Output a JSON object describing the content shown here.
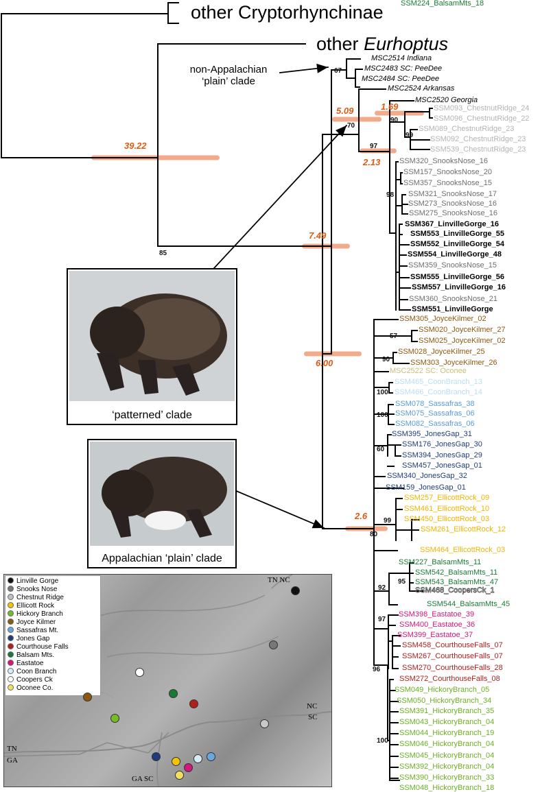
{
  "labels": {
    "other_cryptorhynchinae": "other Cryptorhynchinae",
    "other_eurhoptus_prefix": "other",
    "other_eurhoptus_genus": "Eurhoptus",
    "non_appalachian_callout": "non-Appalachian\n‘plain’ clade",
    "patterned_caption": "‘patterned’ clade",
    "appalachian_caption": "Appalachian ‘plain’ clade"
  },
  "node_ages": [
    "39.22",
    "7.49",
    "6.00",
    "5.09",
    "1.69",
    "2.13",
    "2.6"
  ],
  "supports": [
    "85",
    "67",
    "70",
    "90",
    "99",
    "97",
    "98",
    "57",
    "90",
    "100",
    "100",
    "60",
    "80",
    "99",
    "95",
    "92",
    "97",
    "96",
    "100"
  ],
  "tips": [
    {
      "label": "MSC2514 Indiana",
      "color": "#000000",
      "style": "i"
    },
    {
      "label": "MSC2483 SC: PeeDee",
      "color": "#000000",
      "style": "i"
    },
    {
      "label": "MSC2484 SC: PeeDee",
      "color": "#000000",
      "style": "i"
    },
    {
      "label": "MSC2524 Arkansas",
      "color": "#000000",
      "style": "i"
    },
    {
      "label": "MSC2520 Georgia",
      "color": "#000000",
      "style": "i"
    },
    {
      "label": "SSM093_ChestnutRidge_24",
      "color": "#b4b4b4",
      "style": ""
    },
    {
      "label": "SSM096_ChestnutRidge_22",
      "color": "#b4b4b4",
      "style": ""
    },
    {
      "label": "SSM089_ChestnutRidge_23",
      "color": "#b4b4b4",
      "style": ""
    },
    {
      "label": "SSM092_ChestnutRidge_23",
      "color": "#b4b4b4",
      "style": ""
    },
    {
      "label": "SSM539_ChestnutRidge_23",
      "color": "#b4b4b4",
      "style": ""
    },
    {
      "label": "SSM320_SnooksNose_16",
      "color": "#6e6e6e",
      "style": ""
    },
    {
      "label": "SSM157_SnooksNose_20",
      "color": "#6e6e6e",
      "style": ""
    },
    {
      "label": "SSM357_SnooksNose_15",
      "color": "#6e6e6e",
      "style": ""
    },
    {
      "label": "SSM321_SnooksNose_17",
      "color": "#6e6e6e",
      "style": ""
    },
    {
      "label": "SSM273_SnooksNose_16",
      "color": "#6e6e6e",
      "style": ""
    },
    {
      "label": "SSM275_SnooksNose_16",
      "color": "#6e6e6e",
      "style": ""
    },
    {
      "label": "SSM367_LinvilleGorge_16",
      "color": "#000000",
      "style": "b"
    },
    {
      "label": "SSM553_LinvilleGorge_55",
      "color": "#000000",
      "style": "b"
    },
    {
      "label": "SSM552_LinvilleGorge_54",
      "color": "#000000",
      "style": "b"
    },
    {
      "label": "SSM554_LinvilleGorge_48",
      "color": "#000000",
      "style": "b"
    },
    {
      "label": "SSM359_SnooksNose_15",
      "color": "#6e6e6e",
      "style": ""
    },
    {
      "label": "SSM555_LinvilleGorge_56",
      "color": "#000000",
      "style": "b"
    },
    {
      "label": "SSM557_LinvilleGorge_16",
      "color": "#000000",
      "style": "b"
    },
    {
      "label": "SSM360_SnooksNose_21",
      "color": "#6e6e6e",
      "style": ""
    },
    {
      "label": "SSM551_LinvilleGorge",
      "color": "#000000",
      "style": "b"
    },
    {
      "label": "SSM305_JoyceKilmer_02",
      "color": "#8b5a12",
      "style": ""
    },
    {
      "label": "SSM020_JoyceKilmer_27",
      "color": "#8b5a12",
      "style": ""
    },
    {
      "label": "SSM025_JoyceKilmer_02",
      "color": "#8b5a12",
      "style": ""
    },
    {
      "label": "SSM028_JoyceKilmer_25",
      "color": "#8b5a12",
      "style": ""
    },
    {
      "label": "SSM303_JoyceKilmer_26",
      "color": "#8b5a12",
      "style": ""
    },
    {
      "label": "MSC2522 SC: Oconee",
      "color": "#c9c07a",
      "style": ""
    },
    {
      "label": "SSM465_CoonBranch_13",
      "color": "#b9def0",
      "style": ""
    },
    {
      "label": "SSM466_CoonBranch_14",
      "color": "#b9def0",
      "style": ""
    },
    {
      "label": "SSM078_Sassafras_38",
      "color": "#5b9bd5",
      "style": ""
    },
    {
      "label": "SSM075_Sassafras_06",
      "color": "#5b9bd5",
      "style": ""
    },
    {
      "label": "SSM082_Sassafras_06",
      "color": "#5b9bd5",
      "style": ""
    },
    {
      "label": "SSM395_JonesGap_31",
      "color": "#1f3b7a",
      "style": ""
    },
    {
      "label": "SSM176_JonesGap_30",
      "color": "#1f3b7a",
      "style": ""
    },
    {
      "label": "SSM394_JonesGap_29",
      "color": "#1f3b7a",
      "style": ""
    },
    {
      "label": "SSM457_JonesGap_01",
      "color": "#1f3b7a",
      "style": ""
    },
    {
      "label": "SSM340_JonesGap_32",
      "color": "#1f3b7a",
      "style": ""
    },
    {
      "label": "SSM159_JonesGap_01",
      "color": "#1f3b7a",
      "style": ""
    },
    {
      "label": "SSM257_EllicottRock_09",
      "color": "#f0b400",
      "style": ""
    },
    {
      "label": "SSM461_EllicottRock_10",
      "color": "#f0b400",
      "style": ""
    },
    {
      "label": "SSM450_EllicottRock_03",
      "color": "#f0b400",
      "style": ""
    },
    {
      "label": "SSM261_EllicottRock_12",
      "color": "#f0b400",
      "style": ""
    },
    {
      "label": "SSM464_EllicottRock_03",
      "color": "#f0b400",
      "style": ""
    },
    {
      "label": "SSM227_BalsamMts_11",
      "color": "#1a7a35",
      "style": ""
    },
    {
      "label": "SSM542_BalsamMts_11",
      "color": "#1a7a35",
      "style": ""
    },
    {
      "label": "SSM543_BalsamMts_47",
      "color": "#1a7a35",
      "style": ""
    },
    {
      "label": "SSM468_CoopersCk_1",
      "color": "#000000",
      "style": "o"
    },
    {
      "label": "SSM544_BalsamMts_45",
      "color": "#1a7a35",
      "style": ""
    },
    {
      "label": "SSM398_Eastatoe_39",
      "color": "#d4157a",
      "style": ""
    },
    {
      "label": "SSM400_Eastatoe_36",
      "color": "#d4157a",
      "style": ""
    },
    {
      "label": "SSM399_Eastatoe_37",
      "color": "#d4157a",
      "style": ""
    },
    {
      "label": "SSM458_CourthouseFalls_07",
      "color": "#b0201c",
      "style": ""
    },
    {
      "label": "SSM267_CourthouseFalls_07",
      "color": "#b0201c",
      "style": ""
    },
    {
      "label": "SSM270_CourthouseFalls_28",
      "color": "#b0201c",
      "style": ""
    },
    {
      "label": "SSM272_CourthouseFalls_08",
      "color": "#b0201c",
      "style": ""
    },
    {
      "label": "SSM049_HickoryBranch_05",
      "color": "#6ab023",
      "style": ""
    },
    {
      "label": "SSM050_HickoryBranch_34",
      "color": "#6ab023",
      "style": ""
    },
    {
      "label": "SSM391_HickoryBranch_35",
      "color": "#6ab023",
      "style": ""
    },
    {
      "label": "SSM043_HickoryBranch_04",
      "color": "#6ab023",
      "style": ""
    },
    {
      "label": "SSM044_HickoryBranch_19",
      "color": "#6ab023",
      "style": ""
    },
    {
      "label": "SSM046_HickoryBranch_04",
      "color": "#6ab023",
      "style": ""
    },
    {
      "label": "SSM045_HickoryBranch_04",
      "color": "#6ab023",
      "style": ""
    },
    {
      "label": "SSM392_HickoryBranch_04",
      "color": "#6ab023",
      "style": ""
    },
    {
      "label": "SSM390_HickoryBranch_33",
      "color": "#6ab023",
      "style": ""
    },
    {
      "label": "SSM048_HickoryBranch_18",
      "color": "#6ab023",
      "style": ""
    },
    {
      "label": "SSM224_BalsamMts_18",
      "color": "#1a7a35",
      "style": ""
    }
  ],
  "legend": [
    {
      "label": "Linville Gorge",
      "color": "#111111"
    },
    {
      "label": "Snooks Nose",
      "color": "#777777"
    },
    {
      "label": "Chestnut Ridge",
      "color": "#c0c0c0"
    },
    {
      "label": "Ellicott Rock",
      "color": "#f5c400"
    },
    {
      "label": "Hickory Branch",
      "color": "#77bb2a"
    },
    {
      "label": "Joyce Kilmer",
      "color": "#8b5a12"
    },
    {
      "label": "Sassafras Mt.",
      "color": "#6aa8dc"
    },
    {
      "label": "Jones Gap",
      "color": "#1f3b7a"
    },
    {
      "label": "Courthouse Falls",
      "color": "#b0201c"
    },
    {
      "label": "Balsam Mts.",
      "color": "#1a7a35"
    },
    {
      "label": "Eastatoe",
      "color": "#d4157a"
    },
    {
      "label": "Coon Branch",
      "color": "#d6ecf8"
    },
    {
      "label": "Coopers Ck",
      "color": "#ffffff"
    },
    {
      "label": "Oconee Co.",
      "color": "#f4e060"
    }
  ],
  "map_labels": {
    "tn_nc_top": "TN  NC",
    "nc": "NC",
    "sc_right": "SC",
    "tn": "TN",
    "ga": "GA",
    "ga_sc_bottom": "GA  SC"
  }
}
